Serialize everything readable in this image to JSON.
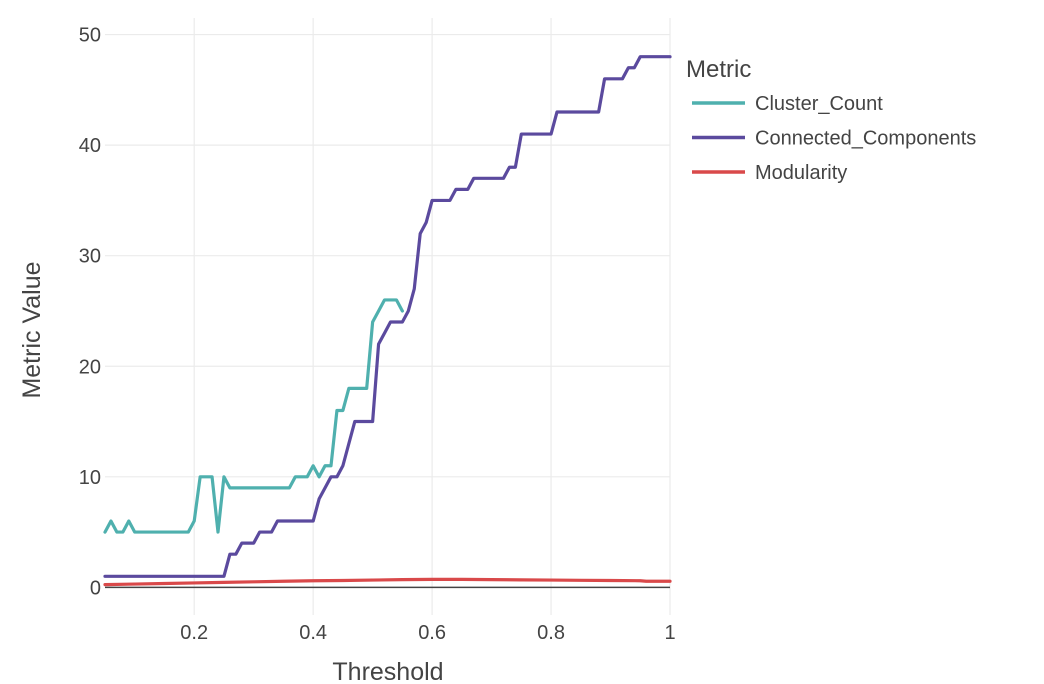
{
  "chart_data": {
    "type": "line",
    "xlabel": "Threshold",
    "ylabel": "Metric Value",
    "xlim": [
      0.05,
      1
    ],
    "ylim": [
      -2.5,
      51.5
    ],
    "x_ticks": [
      0.2,
      0.4,
      0.6,
      0.8,
      1
    ],
    "x_tick_labels": [
      "0.2",
      "0.4",
      "0.6",
      "0.8",
      "1"
    ],
    "y_ticks": [
      0,
      10,
      20,
      30,
      40,
      50
    ],
    "y_tick_labels": [
      "0",
      "10",
      "20",
      "30",
      "40",
      "50"
    ],
    "grid": true,
    "zero_line": true,
    "legend": {
      "title": "Metric",
      "placement": "top-right outside"
    },
    "series": [
      {
        "name": "Cluster_Count",
        "color": "#4fb0ae",
        "points": [
          [
            0.05,
            5
          ],
          [
            0.06,
            6
          ],
          [
            0.07,
            5
          ],
          [
            0.08,
            5
          ],
          [
            0.09,
            6
          ],
          [
            0.1,
            5
          ],
          [
            0.12,
            5
          ],
          [
            0.14,
            5
          ],
          [
            0.16,
            5
          ],
          [
            0.18,
            5
          ],
          [
            0.19,
            5
          ],
          [
            0.2,
            6
          ],
          [
            0.21,
            10
          ],
          [
            0.22,
            10
          ],
          [
            0.23,
            10
          ],
          [
            0.24,
            5
          ],
          [
            0.25,
            10
          ],
          [
            0.26,
            9
          ],
          [
            0.28,
            9
          ],
          [
            0.3,
            9
          ],
          [
            0.32,
            9
          ],
          [
            0.34,
            9
          ],
          [
            0.36,
            9
          ],
          [
            0.37,
            10
          ],
          [
            0.39,
            10
          ],
          [
            0.4,
            11
          ],
          [
            0.41,
            10
          ],
          [
            0.42,
            11
          ],
          [
            0.43,
            11
          ],
          [
            0.44,
            16
          ],
          [
            0.45,
            16
          ],
          [
            0.46,
            18
          ],
          [
            0.47,
            18
          ],
          [
            0.48,
            18
          ],
          [
            0.49,
            18
          ],
          [
            0.5,
            24
          ],
          [
            0.51,
            25
          ],
          [
            0.52,
            26
          ],
          [
            0.53,
            26
          ],
          [
            0.54,
            26
          ],
          [
            0.55,
            25
          ]
        ]
      },
      {
        "name": "Connected_Components",
        "color": "#5b4a9e",
        "points": [
          [
            0.05,
            1
          ],
          [
            0.1,
            1
          ],
          [
            0.15,
            1
          ],
          [
            0.2,
            1
          ],
          [
            0.24,
            1
          ],
          [
            0.25,
            1
          ],
          [
            0.26,
            3
          ],
          [
            0.27,
            3
          ],
          [
            0.28,
            4
          ],
          [
            0.29,
            4
          ],
          [
            0.3,
            4
          ],
          [
            0.31,
            5
          ],
          [
            0.32,
            5
          ],
          [
            0.33,
            5
          ],
          [
            0.34,
            6
          ],
          [
            0.35,
            6
          ],
          [
            0.36,
            6
          ],
          [
            0.37,
            6
          ],
          [
            0.38,
            6
          ],
          [
            0.39,
            6
          ],
          [
            0.4,
            6
          ],
          [
            0.41,
            8
          ],
          [
            0.42,
            9
          ],
          [
            0.43,
            10
          ],
          [
            0.44,
            10
          ],
          [
            0.45,
            11
          ],
          [
            0.46,
            13
          ],
          [
            0.47,
            15
          ],
          [
            0.48,
            15
          ],
          [
            0.49,
            15
          ],
          [
            0.5,
            15
          ],
          [
            0.51,
            22
          ],
          [
            0.52,
            23
          ],
          [
            0.53,
            24
          ],
          [
            0.54,
            24
          ],
          [
            0.55,
            24
          ],
          [
            0.56,
            25
          ],
          [
            0.57,
            27
          ],
          [
            0.58,
            32
          ],
          [
            0.59,
            33
          ],
          [
            0.6,
            35
          ],
          [
            0.61,
            35
          ],
          [
            0.62,
            35
          ],
          [
            0.63,
            35
          ],
          [
            0.64,
            36
          ],
          [
            0.65,
            36
          ],
          [
            0.66,
            36
          ],
          [
            0.67,
            37
          ],
          [
            0.68,
            37
          ],
          [
            0.69,
            37
          ],
          [
            0.7,
            37
          ],
          [
            0.71,
            37
          ],
          [
            0.72,
            37
          ],
          [
            0.73,
            38
          ],
          [
            0.74,
            38
          ],
          [
            0.75,
            41
          ],
          [
            0.76,
            41
          ],
          [
            0.77,
            41
          ],
          [
            0.78,
            41
          ],
          [
            0.79,
            41
          ],
          [
            0.8,
            41
          ],
          [
            0.81,
            43
          ],
          [
            0.82,
            43
          ],
          [
            0.83,
            43
          ],
          [
            0.84,
            43
          ],
          [
            0.85,
            43
          ],
          [
            0.86,
            43
          ],
          [
            0.87,
            43
          ],
          [
            0.88,
            43
          ],
          [
            0.89,
            46
          ],
          [
            0.9,
            46
          ],
          [
            0.91,
            46
          ],
          [
            0.92,
            46
          ],
          [
            0.93,
            47
          ],
          [
            0.94,
            47
          ],
          [
            0.95,
            48
          ],
          [
            0.96,
            48
          ],
          [
            0.97,
            48
          ],
          [
            0.98,
            48
          ],
          [
            0.99,
            48
          ],
          [
            1.0,
            48
          ]
        ]
      },
      {
        "name": "Modularity",
        "color": "#d9494a",
        "points": [
          [
            0.05,
            0.25
          ],
          [
            0.1,
            0.3
          ],
          [
            0.15,
            0.35
          ],
          [
            0.2,
            0.4
          ],
          [
            0.25,
            0.45
          ],
          [
            0.3,
            0.5
          ],
          [
            0.35,
            0.55
          ],
          [
            0.4,
            0.6
          ],
          [
            0.45,
            0.62
          ],
          [
            0.5,
            0.66
          ],
          [
            0.55,
            0.7
          ],
          [
            0.6,
            0.72
          ],
          [
            0.65,
            0.72
          ],
          [
            0.7,
            0.7
          ],
          [
            0.75,
            0.68
          ],
          [
            0.8,
            0.66
          ],
          [
            0.85,
            0.64
          ],
          [
            0.9,
            0.62
          ],
          [
            0.95,
            0.6
          ],
          [
            0.96,
            0.55
          ],
          [
            1.0,
            0.55
          ]
        ]
      }
    ]
  }
}
